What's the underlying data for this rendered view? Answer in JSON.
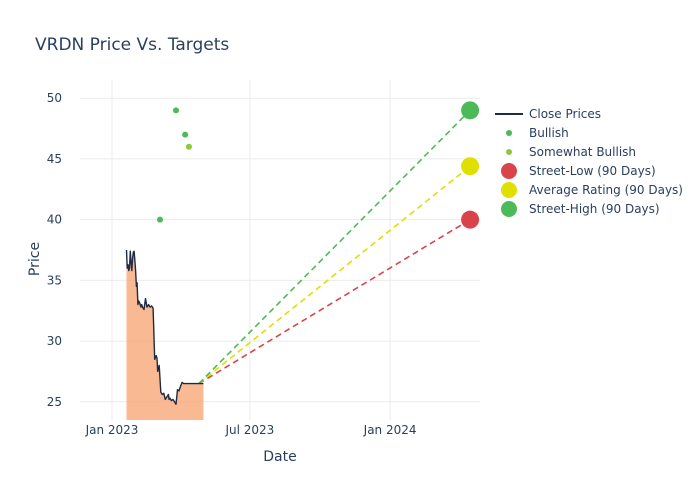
{
  "chart_data": {
    "type": "line",
    "title": "VRDN Price Vs. Targets",
    "xlabel": "Date",
    "ylabel": "Price",
    "x_range": [
      "2022-11-20",
      "2024-04-28"
    ],
    "y_range": [
      23.5,
      51.5
    ],
    "x_ticks": [
      {
        "date": "2023-01-01",
        "label": "Jan 2023"
      },
      {
        "date": "2023-07-01",
        "label": "Jul 2023"
      },
      {
        "date": "2024-01-01",
        "label": "Jan 2024"
      }
    ],
    "y_ticks": [
      25,
      30,
      35,
      40,
      45,
      50
    ],
    "grid": true,
    "legend_position": "top-right",
    "colors": {
      "close": "#1f2a44",
      "fill": "#f7a16f",
      "bullish": "#4cbb57",
      "somewhat_bullish": "#8dc63f",
      "street_low": "#d9444a",
      "average": "#e0e000",
      "street_high": "#4cbb57"
    },
    "close_prices": {
      "name": "Close Prices",
      "x": [
        "2023-01-20",
        "2023-01-21",
        "2023-01-22",
        "2023-01-23",
        "2023-01-24",
        "2023-01-25",
        "2023-01-26",
        "2023-01-27",
        "2023-01-28",
        "2023-01-29",
        "2023-01-30",
        "2023-01-31",
        "2023-02-01",
        "2023-02-02",
        "2023-02-03",
        "2023-02-04",
        "2023-02-05",
        "2023-02-06",
        "2023-02-07",
        "2023-02-08",
        "2023-02-09",
        "2023-02-10",
        "2023-02-12",
        "2023-02-14",
        "2023-02-16",
        "2023-02-18",
        "2023-02-20",
        "2023-02-22",
        "2023-02-24",
        "2023-02-26",
        "2023-02-28",
        "2023-03-01",
        "2023-03-02",
        "2023-03-04",
        "2023-03-06",
        "2023-03-08",
        "2023-03-10",
        "2023-03-12",
        "2023-03-14",
        "2023-03-16",
        "2023-03-17",
        "2023-03-18",
        "2023-03-20",
        "2023-03-22",
        "2023-03-24",
        "2023-03-26",
        "2023-03-28",
        "2023-03-30",
        "2023-04-01",
        "2023-04-03",
        "2023-04-05",
        "2023-04-07",
        "2023-04-09",
        "2023-04-11",
        "2023-04-13",
        "2023-04-15",
        "2023-04-17",
        "2023-04-19",
        "2023-04-21",
        "2023-04-23",
        "2023-04-25",
        "2023-04-27",
        "2023-04-29",
        "2023-05-01"
      ],
      "values": [
        37.5,
        36.0,
        36.3,
        35.8,
        36.0,
        37.4,
        36.6,
        35.8,
        36.8,
        37.3,
        37.4,
        36.6,
        35.8,
        34.5,
        34.8,
        33.0,
        33.3,
        33.2,
        33.0,
        32.8,
        33.0,
        32.8,
        32.6,
        33.5,
        32.8,
        33.0,
        32.8,
        32.9,
        32.7,
        28.5,
        28.8,
        28.6,
        27.5,
        28.0,
        25.8,
        25.6,
        25.7,
        25.2,
        25.4,
        25.6,
        25.2,
        25.3,
        25.1,
        25.2,
        25.0,
        24.8,
        26.0,
        25.9,
        26.3,
        26.6,
        26.5,
        26.5,
        26.5,
        26.5,
        26.5,
        26.5,
        26.5,
        26.5,
        26.5,
        26.5,
        26.5,
        26.5,
        26.5,
        26.5
      ]
    },
    "bullish": {
      "name": "Bullish",
      "points": [
        {
          "x": "2023-03-05",
          "y": 40
        },
        {
          "x": "2023-03-26",
          "y": 49
        },
        {
          "x": "2023-04-07",
          "y": 47
        }
      ]
    },
    "somewhat_bullish": {
      "name": "Somewhat Bullish",
      "points": [
        {
          "x": "2023-04-12",
          "y": 46
        }
      ]
    },
    "projection_start": {
      "x": "2023-04-25",
      "y": 26.5
    },
    "street_low": {
      "name": "Street-Low (90 Days)",
      "x": "2024-04-15",
      "y": 40
    },
    "average": {
      "name": "Average Rating (90 Days)",
      "x": "2024-04-15",
      "y": 44.4
    },
    "street_high": {
      "name": "Street-High (90 Days)",
      "x": "2024-04-15",
      "y": 49
    }
  }
}
